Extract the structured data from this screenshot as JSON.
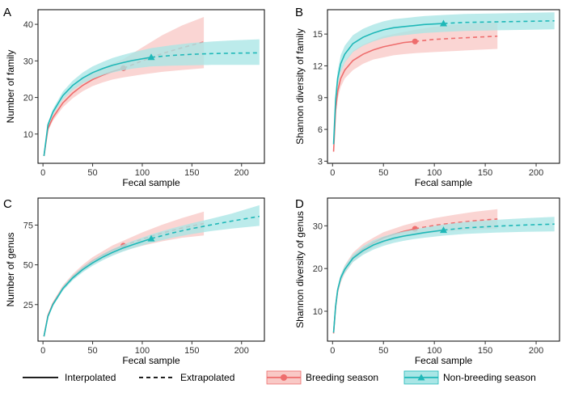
{
  "colors": {
    "breeding": "#ee6d6d",
    "nonbreeding": "#1fb8b8"
  },
  "legend": {
    "interpolated": "Interpolated",
    "extrapolated": "Extrapolated",
    "breeding": "Breeding season",
    "nonbreeding": "Non-breeding season"
  },
  "chart_data": [
    {
      "type": "line",
      "panel": "A",
      "xlabel": "Fecal sample",
      "ylabel": "Number of family",
      "xlim": [
        -5,
        223
      ],
      "ylim": [
        2,
        44
      ],
      "xticks": [
        0,
        50,
        100,
        150,
        200
      ],
      "yticks": [
        10,
        20,
        30,
        40
      ],
      "series": [
        {
          "name": "Breeding season",
          "color": "breeding",
          "marker": "circle",
          "observed": [
            81,
            28.0
          ],
          "x": [
            1,
            5,
            10,
            20,
            30,
            40,
            50,
            60,
            70,
            81,
            100,
            120,
            140,
            162
          ],
          "y": [
            4.0,
            11.5,
            14.5,
            18.5,
            21.2,
            23.3,
            24.9,
            26.1,
            27.1,
            28.0,
            30.0,
            32.0,
            33.6,
            35.2
          ],
          "lower": [
            3.8,
            10.8,
            13.6,
            17.3,
            19.8,
            21.7,
            23.1,
            24.1,
            24.9,
            25.5,
            26.3,
            27.0,
            27.5,
            28.0
          ],
          "upper": [
            4.2,
            12.2,
            15.4,
            19.7,
            22.6,
            24.9,
            26.7,
            28.1,
            29.3,
            30.5,
            33.7,
            37.0,
            39.7,
            42.0
          ]
        },
        {
          "name": "Non-breeding season",
          "color": "nonbreeding",
          "marker": "triangle",
          "observed": [
            109,
            31.0
          ],
          "x": [
            1,
            5,
            10,
            20,
            30,
            40,
            50,
            60,
            70,
            80,
            90,
            109,
            130,
            150,
            170,
            190,
            218
          ],
          "y": [
            4.0,
            12.5,
            16.0,
            20.5,
            23.3,
            25.3,
            26.8,
            27.9,
            28.8,
            29.5,
            30.1,
            31.0,
            31.5,
            31.8,
            32.0,
            32.1,
            32.2
          ],
          "lower": [
            3.8,
            11.9,
            15.2,
            19.4,
            22.0,
            23.8,
            25.1,
            26.1,
            26.8,
            27.4,
            27.9,
            28.5,
            28.7,
            28.8,
            28.9,
            28.9,
            28.9
          ],
          "upper": [
            4.2,
            13.1,
            16.8,
            21.6,
            24.6,
            26.8,
            28.5,
            29.7,
            30.8,
            31.6,
            32.3,
            33.5,
            34.3,
            34.9,
            35.3,
            35.6,
            35.9
          ]
        }
      ]
    },
    {
      "type": "line",
      "panel": "B",
      "xlabel": "Fecal sample",
      "ylabel": "Shannon diversity of family",
      "xlim": [
        -5,
        223
      ],
      "ylim": [
        2.8,
        17.3
      ],
      "xticks": [
        0,
        50,
        100,
        150,
        200
      ],
      "yticks": [
        3,
        6,
        9,
        12,
        15
      ],
      "series": [
        {
          "name": "Breeding season",
          "color": "breeding",
          "marker": "circle",
          "observed": [
            81,
            14.3
          ],
          "x": [
            1,
            3,
            5,
            8,
            12,
            20,
            30,
            40,
            50,
            60,
            70,
            81,
            100,
            120,
            140,
            162
          ],
          "y": [
            3.9,
            7.8,
            9.6,
            10.8,
            11.6,
            12.5,
            13.1,
            13.5,
            13.8,
            14.0,
            14.2,
            14.3,
            14.5,
            14.6,
            14.7,
            14.8
          ],
          "lower": [
            3.7,
            7.2,
            8.9,
            10.0,
            10.8,
            11.6,
            12.2,
            12.6,
            12.8,
            13.0,
            13.1,
            13.2,
            13.3,
            13.4,
            13.5,
            13.6
          ],
          "upper": [
            4.1,
            8.4,
            10.3,
            11.6,
            12.4,
            13.4,
            14.0,
            14.4,
            14.8,
            15.0,
            15.2,
            15.4,
            15.7,
            15.9,
            16.0,
            16.1
          ]
        },
        {
          "name": "Non-breeding season",
          "color": "nonbreeding",
          "marker": "triangle",
          "observed": [
            109,
            16.0
          ],
          "x": [
            1,
            3,
            5,
            8,
            12,
            20,
            30,
            40,
            50,
            60,
            70,
            80,
            90,
            109,
            130,
            160,
            190,
            218
          ],
          "y": [
            4.6,
            8.8,
            10.8,
            12.2,
            13.1,
            14.1,
            14.7,
            15.1,
            15.4,
            15.6,
            15.7,
            15.8,
            15.9,
            16.0,
            16.1,
            16.15,
            16.2,
            16.25
          ],
          "lower": [
            4.4,
            8.2,
            10.1,
            11.4,
            12.3,
            13.3,
            13.9,
            14.3,
            14.6,
            14.8,
            14.9,
            15.0,
            15.1,
            15.2,
            15.3,
            15.35,
            15.4,
            15.45
          ],
          "upper": [
            4.8,
            9.4,
            11.5,
            13.0,
            13.9,
            14.9,
            15.5,
            15.9,
            16.2,
            16.4,
            16.5,
            16.6,
            16.7,
            16.8,
            16.9,
            16.95,
            17.0,
            17.05
          ]
        }
      ]
    },
    {
      "type": "line",
      "panel": "C",
      "xlabel": "Fecal sample",
      "ylabel": "Number of genus",
      "xlim": [
        -5,
        223
      ],
      "ylim": [
        2,
        92
      ],
      "xticks": [
        0,
        50,
        100,
        150,
        200
      ],
      "yticks": [
        25,
        50,
        75
      ],
      "series": [
        {
          "name": "Breeding season",
          "color": "breeding",
          "marker": "circle",
          "observed": [
            81,
            62.0
          ],
          "x": [
            1,
            5,
            10,
            20,
            30,
            40,
            50,
            60,
            70,
            81,
            100,
            120,
            140,
            162
          ],
          "y": [
            5.0,
            18.0,
            25.5,
            35.5,
            42.5,
            48.0,
            52.5,
            56.0,
            59.2,
            62.0,
            66.2,
            70.0,
            73.2,
            76.0
          ],
          "lower": [
            4.8,
            17.0,
            24.2,
            34.0,
            40.8,
            46.0,
            50.2,
            53.5,
            56.2,
            58.8,
            62.0,
            64.8,
            67.0,
            68.5
          ],
          "upper": [
            5.2,
            19.0,
            26.8,
            37.0,
            44.2,
            50.0,
            54.8,
            58.5,
            62.2,
            65.2,
            70.4,
            75.2,
            79.4,
            83.5
          ]
        },
        {
          "name": "Non-breeding season",
          "color": "nonbreeding",
          "marker": "triangle",
          "observed": [
            109,
            66.5
          ],
          "x": [
            1,
            5,
            10,
            20,
            30,
            40,
            50,
            60,
            70,
            80,
            90,
            109,
            130,
            150,
            170,
            190,
            218
          ],
          "y": [
            5.0,
            17.5,
            25.0,
            35.0,
            41.8,
            47.0,
            51.2,
            54.8,
            57.8,
            60.4,
            62.6,
            66.5,
            70.0,
            72.8,
            75.2,
            77.5,
            80.5
          ],
          "lower": [
            4.8,
            16.8,
            24.0,
            33.7,
            40.3,
            45.3,
            49.4,
            52.8,
            55.7,
            58.2,
            60.3,
            63.9,
            67.0,
            69.4,
            71.3,
            72.8,
            74.5
          ],
          "upper": [
            5.2,
            18.2,
            26.0,
            36.3,
            43.3,
            48.7,
            53.0,
            56.8,
            59.9,
            62.6,
            64.9,
            69.1,
            73.0,
            76.2,
            79.1,
            82.2,
            87.5
          ]
        }
      ]
    },
    {
      "type": "line",
      "panel": "D",
      "xlabel": "Fecal sample",
      "ylabel": "Shannon diversity of genus",
      "xlim": [
        -5,
        223
      ],
      "ylim": [
        3,
        36.5
      ],
      "xticks": [
        0,
        50,
        100,
        150,
        200
      ],
      "yticks": [
        10,
        20,
        30
      ],
      "series": [
        {
          "name": "Breeding season",
          "color": "breeding",
          "marker": "circle",
          "observed": [
            81,
            29.3
          ],
          "x": [
            1,
            3,
            5,
            8,
            12,
            20,
            30,
            40,
            50,
            60,
            70,
            81,
            100,
            120,
            140,
            162
          ],
          "y": [
            4.8,
            11.0,
            14.8,
            17.6,
            19.8,
            22.6,
            24.6,
            26.0,
            27.2,
            28.0,
            28.7,
            29.3,
            30.1,
            30.7,
            31.2,
            31.6
          ],
          "lower": [
            4.6,
            10.4,
            14.0,
            16.7,
            18.8,
            21.5,
            23.4,
            24.8,
            25.9,
            26.7,
            27.3,
            27.8,
            28.4,
            28.8,
            29.1,
            29.3
          ],
          "upper": [
            5.0,
            11.6,
            15.6,
            18.5,
            20.8,
            23.7,
            25.8,
            27.2,
            28.5,
            29.3,
            30.1,
            30.8,
            31.8,
            32.6,
            33.3,
            33.9
          ]
        },
        {
          "name": "Non-breeding season",
          "color": "nonbreeding",
          "marker": "triangle",
          "observed": [
            109,
            29.0
          ],
          "x": [
            1,
            3,
            5,
            8,
            12,
            20,
            30,
            40,
            50,
            60,
            70,
            80,
            90,
            109,
            130,
            160,
            190,
            218
          ],
          "y": [
            5.0,
            11.2,
            15.0,
            17.8,
            19.8,
            22.4,
            24.2,
            25.5,
            26.4,
            27.1,
            27.6,
            28.0,
            28.4,
            29.0,
            29.5,
            29.9,
            30.2,
            30.4
          ],
          "lower": [
            4.8,
            10.6,
            14.3,
            17.0,
            19.0,
            21.5,
            23.2,
            24.4,
            25.3,
            26.0,
            26.5,
            26.9,
            27.2,
            27.7,
            28.1,
            28.4,
            28.6,
            28.7
          ],
          "upper": [
            5.2,
            11.8,
            15.7,
            18.6,
            20.6,
            23.3,
            25.2,
            26.6,
            27.5,
            28.2,
            28.7,
            29.1,
            29.6,
            30.3,
            30.9,
            31.4,
            31.8,
            32.1
          ]
        }
      ]
    }
  ]
}
